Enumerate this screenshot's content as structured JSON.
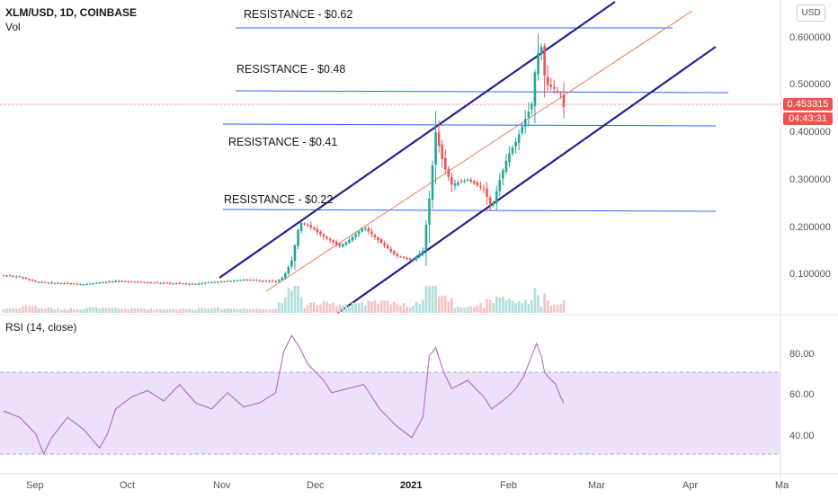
{
  "header": {
    "symbol": "XLM/USD, 1D, COINBASE",
    "volume_label": "Vol",
    "currency_button": "USD",
    "rsi_title": "RSI (14, close)"
  },
  "price_tags": {
    "last_price": "0.453315",
    "countdown": "04:43:31"
  },
  "colors": {
    "up": "#26a69a",
    "down": "#ef5350",
    "channel": "#2a1f8f",
    "midline": "#f07a50",
    "resistance": "#2962ff",
    "rsi_line": "#b46ac8",
    "rsi_band": "#ede0fb"
  },
  "chart_data": [
    {
      "type": "candlestick",
      "title": "XLM/USD, 1D, COINBASE",
      "x_ticks": [
        "Sep",
        "Oct",
        "Nov",
        "Dec",
        "2021",
        "Feb",
        "Mar",
        "Apr",
        "Ma"
      ],
      "y_ticks": [
        "0.100000",
        "0.200000",
        "0.300000",
        "0.400000",
        "0.500000",
        "0.600000"
      ],
      "ylim": [
        0.0,
        0.68
      ],
      "last_price": 0.453315,
      "annotations": [
        {
          "text": "RESISTANCE - $0.62",
          "value": 0.62
        },
        {
          "text": "RESISTANCE - $0.48",
          "value": 0.48
        },
        {
          "text": "RESISTANCE - $0.41",
          "value": 0.41
        },
        {
          "text": "RESISTANCE - $0.22",
          "value": 0.22
        }
      ],
      "channel": "ascending channel (upper, middle, lower trend lines)",
      "close_approx": [
        [
          0,
          0.098
        ],
        [
          10,
          0.095
        ],
        [
          20,
          0.085
        ],
        [
          30,
          0.082
        ],
        [
          40,
          0.081
        ],
        [
          50,
          0.079
        ],
        [
          60,
          0.083
        ],
        [
          70,
          0.086
        ],
        [
          80,
          0.085
        ],
        [
          90,
          0.083
        ],
        [
          100,
          0.082
        ],
        [
          110,
          0.081
        ],
        [
          120,
          0.08
        ],
        [
          130,
          0.084
        ],
        [
          140,
          0.086
        ],
        [
          150,
          0.089
        ],
        [
          160,
          0.087
        ],
        [
          170,
          0.085
        ],
        [
          175,
          0.095
        ],
        [
          180,
          0.13
        ],
        [
          185,
          0.21
        ],
        [
          190,
          0.205
        ],
        [
          200,
          0.18
        ],
        [
          210,
          0.16
        ],
        [
          215,
          0.17
        ],
        [
          225,
          0.2
        ],
        [
          235,
          0.17
        ],
        [
          245,
          0.14
        ],
        [
          255,
          0.13
        ],
        [
          262,
          0.15
        ],
        [
          266,
          0.26
        ],
        [
          270,
          0.4
        ],
        [
          275,
          0.33
        ],
        [
          280,
          0.29
        ],
        [
          290,
          0.3
        ],
        [
          300,
          0.28
        ],
        [
          305,
          0.24
        ],
        [
          310,
          0.3
        ],
        [
          315,
          0.35
        ],
        [
          320,
          0.38
        ],
        [
          325,
          0.42
        ],
        [
          330,
          0.46
        ],
        [
          333,
          0.56
        ],
        [
          336,
          0.58
        ],
        [
          338,
          0.52
        ],
        [
          340,
          0.5
        ],
        [
          345,
          0.49
        ],
        [
          348,
          0.48
        ],
        [
          350,
          0.453
        ]
      ]
    },
    {
      "type": "line",
      "title": "RSI (14, close)",
      "y_ticks": [
        "40.00",
        "60.00",
        "80.00"
      ],
      "ylim": [
        25,
        95
      ],
      "band": [
        30,
        70
      ],
      "values_approx": [
        [
          0,
          51
        ],
        [
          10,
          48
        ],
        [
          20,
          40
        ],
        [
          25,
          30
        ],
        [
          30,
          38
        ],
        [
          40,
          48
        ],
        [
          50,
          42
        ],
        [
          60,
          33
        ],
        [
          65,
          40
        ],
        [
          70,
          52
        ],
        [
          80,
          58
        ],
        [
          90,
          61
        ],
        [
          100,
          56
        ],
        [
          110,
          64
        ],
        [
          120,
          55
        ],
        [
          130,
          52
        ],
        [
          140,
          60
        ],
        [
          150,
          53
        ],
        [
          160,
          55
        ],
        [
          170,
          60
        ],
        [
          175,
          80
        ],
        [
          180,
          88
        ],
        [
          185,
          82
        ],
        [
          190,
          74
        ],
        [
          200,
          66
        ],
        [
          205,
          60
        ],
        [
          215,
          62
        ],
        [
          225,
          64
        ],
        [
          235,
          52
        ],
        [
          245,
          44
        ],
        [
          255,
          38
        ],
        [
          262,
          48
        ],
        [
          266,
          78
        ],
        [
          270,
          82
        ],
        [
          275,
          70
        ],
        [
          280,
          62
        ],
        [
          290,
          66
        ],
        [
          300,
          58
        ],
        [
          305,
          52
        ],
        [
          310,
          55
        ],
        [
          315,
          58
        ],
        [
          320,
          62
        ],
        [
          325,
          68
        ],
        [
          330,
          78
        ],
        [
          333,
          84
        ],
        [
          336,
          78
        ],
        [
          338,
          70
        ],
        [
          340,
          68
        ],
        [
          345,
          64
        ],
        [
          348,
          58
        ],
        [
          350,
          55
        ]
      ]
    }
  ]
}
